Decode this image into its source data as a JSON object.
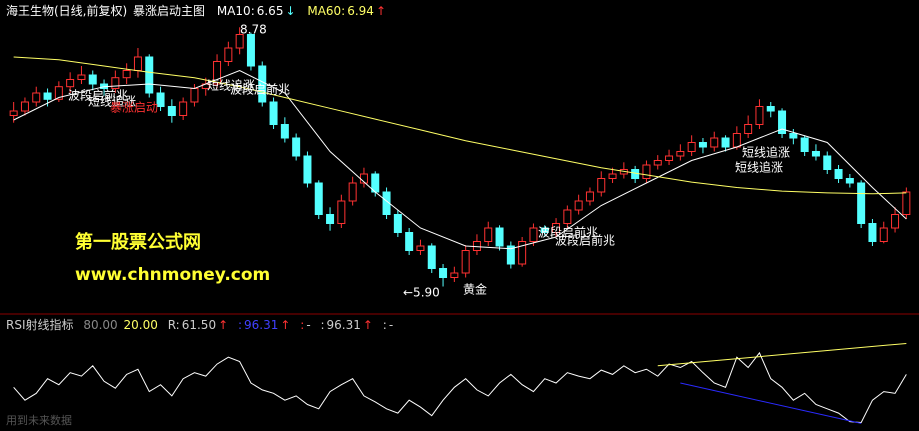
{
  "header": {
    "stock": "海王生物(日线,前复权)",
    "indicator": "暴涨启动主图",
    "ma10": {
      "label": "MA10:",
      "value": "6.65",
      "arrow": "↓"
    },
    "ma60": {
      "label": "MA60:",
      "value": "6.94",
      "arrow": "↑"
    }
  },
  "chart_data": {
    "type": "candlestick",
    "ylim": [
      5.75,
      8.95
    ],
    "up_color": "#ff3232",
    "down_color": "#54ffff",
    "candles": [
      [
        7.8,
        7.95,
        7.72,
        7.85
      ],
      [
        7.85,
        8.0,
        7.8,
        7.95
      ],
      [
        7.95,
        8.12,
        7.9,
        8.05
      ],
      [
        8.05,
        8.1,
        7.9,
        7.98
      ],
      [
        7.98,
        8.18,
        7.95,
        8.12
      ],
      [
        8.12,
        8.28,
        8.05,
        8.2
      ],
      [
        8.2,
        8.35,
        8.15,
        8.25
      ],
      [
        8.25,
        8.3,
        8.08,
        8.15
      ],
      [
        8.15,
        8.2,
        8.02,
        8.1
      ],
      [
        8.1,
        8.3,
        8.05,
        8.22
      ],
      [
        8.22,
        8.38,
        8.15,
        8.3
      ],
      [
        8.3,
        8.55,
        8.22,
        8.45
      ],
      [
        8.45,
        8.48,
        8.0,
        8.05
      ],
      [
        8.05,
        8.12,
        7.85,
        7.9
      ],
      [
        7.9,
        7.98,
        7.72,
        7.8
      ],
      [
        7.8,
        8.0,
        7.75,
        7.95
      ],
      [
        7.95,
        8.15,
        7.9,
        8.1
      ],
      [
        8.1,
        8.22,
        8.02,
        8.15
      ],
      [
        8.15,
        8.48,
        8.1,
        8.4
      ],
      [
        8.4,
        8.62,
        8.35,
        8.55
      ],
      [
        8.55,
        8.78,
        8.48,
        8.7
      ],
      [
        8.7,
        8.72,
        8.3,
        8.35
      ],
      [
        8.35,
        8.4,
        7.9,
        7.95
      ],
      [
        7.95,
        8.0,
        7.65,
        7.7
      ],
      [
        7.7,
        7.78,
        7.5,
        7.55
      ],
      [
        7.55,
        7.6,
        7.3,
        7.35
      ],
      [
        7.35,
        7.4,
        7.0,
        7.05
      ],
      [
        7.05,
        7.08,
        6.65,
        6.7
      ],
      [
        6.7,
        6.78,
        6.52,
        6.6
      ],
      [
        6.6,
        6.92,
        6.55,
        6.85
      ],
      [
        6.85,
        7.12,
        6.8,
        7.05
      ],
      [
        7.05,
        7.22,
        7.0,
        7.15
      ],
      [
        7.15,
        7.18,
        6.9,
        6.95
      ],
      [
        6.95,
        7.0,
        6.65,
        6.7
      ],
      [
        6.7,
        6.75,
        6.45,
        6.5
      ],
      [
        6.5,
        6.55,
        6.25,
        6.3
      ],
      [
        6.3,
        6.42,
        6.25,
        6.35
      ],
      [
        6.35,
        6.38,
        6.05,
        6.1
      ],
      [
        6.1,
        6.15,
        5.9,
        6.0
      ],
      [
        6.0,
        6.12,
        5.95,
        6.05
      ],
      [
        6.05,
        6.36,
        6.0,
        6.3
      ],
      [
        6.3,
        6.48,
        6.25,
        6.4
      ],
      [
        6.4,
        6.62,
        6.35,
        6.55
      ],
      [
        6.55,
        6.58,
        6.3,
        6.35
      ],
      [
        6.35,
        6.4,
        6.1,
        6.15
      ],
      [
        6.15,
        6.45,
        6.12,
        6.4
      ],
      [
        6.4,
        6.6,
        6.35,
        6.55
      ],
      [
        6.55,
        6.58,
        6.45,
        6.5
      ],
      [
        6.5,
        6.66,
        6.45,
        6.6
      ],
      [
        6.6,
        6.8,
        6.55,
        6.75
      ],
      [
        6.75,
        6.92,
        6.7,
        6.85
      ],
      [
        6.85,
        7.0,
        6.8,
        6.95
      ],
      [
        6.95,
        7.18,
        6.9,
        7.1
      ],
      [
        7.1,
        7.22,
        7.05,
        7.15
      ],
      [
        7.15,
        7.28,
        7.1,
        7.2
      ],
      [
        7.2,
        7.24,
        7.05,
        7.1
      ],
      [
        7.1,
        7.3,
        7.05,
        7.25
      ],
      [
        7.25,
        7.36,
        7.2,
        7.3
      ],
      [
        7.3,
        7.42,
        7.25,
        7.35
      ],
      [
        7.35,
        7.48,
        7.3,
        7.4
      ],
      [
        7.4,
        7.58,
        7.35,
        7.5
      ],
      [
        7.5,
        7.55,
        7.38,
        7.45
      ],
      [
        7.45,
        7.62,
        7.4,
        7.55
      ],
      [
        7.55,
        7.58,
        7.4,
        7.45
      ],
      [
        7.45,
        7.68,
        7.42,
        7.6
      ],
      [
        7.6,
        7.8,
        7.55,
        7.7
      ],
      [
        7.7,
        7.98,
        7.65,
        7.9
      ],
      [
        7.9,
        7.95,
        7.78,
        7.85
      ],
      [
        7.85,
        7.88,
        7.55,
        7.6
      ],
      [
        7.6,
        7.65,
        7.48,
        7.55
      ],
      [
        7.55,
        7.58,
        7.35,
        7.4
      ],
      [
        7.4,
        7.48,
        7.3,
        7.35
      ],
      [
        7.35,
        7.4,
        7.15,
        7.2
      ],
      [
        7.2,
        7.25,
        7.05,
        7.1
      ],
      [
        7.1,
        7.15,
        7.0,
        7.05
      ],
      [
        7.05,
        7.08,
        6.55,
        6.6
      ],
      [
        6.6,
        6.65,
        6.35,
        6.4
      ],
      [
        6.4,
        6.62,
        6.38,
        6.55
      ],
      [
        6.55,
        6.78,
        6.5,
        6.7
      ],
      [
        6.7,
        7.0,
        6.65,
        6.95
      ]
    ],
    "ma_x": [
      0,
      4,
      8,
      12,
      16,
      20,
      24,
      28,
      32,
      36,
      40,
      44,
      48,
      52,
      56,
      60,
      64,
      68,
      72,
      76,
      79
    ],
    "ma_series": [
      {
        "name": "MA10",
        "color": "#ffffff",
        "values": [
          7.75,
          8.0,
          8.12,
          8.15,
          8.1,
          8.3,
          8.05,
          7.4,
          6.95,
          6.55,
          6.35,
          6.32,
          6.45,
          6.8,
          7.05,
          7.3,
          7.45,
          7.65,
          7.5,
          7.0,
          6.65
        ]
      },
      {
        "name": "MA60",
        "color": "#ffff66",
        "values": [
          8.45,
          8.42,
          8.35,
          8.28,
          8.22,
          8.12,
          8.0,
          7.88,
          7.76,
          7.64,
          7.52,
          7.42,
          7.32,
          7.22,
          7.14,
          7.06,
          7.0,
          6.96,
          6.94,
          6.93,
          6.94
        ]
      }
    ],
    "annotations": [
      {
        "text": "波段启前兆",
        "color": "#ffffff"
      },
      {
        "text": "短线追涨",
        "color": "#ffffff"
      },
      {
        "text": "暴涨启动",
        "color": "#ff3232"
      },
      {
        "text": "短线追涨",
        "color": "#ffffff"
      },
      {
        "text": "波段启前兆",
        "color": "#ffffff"
      },
      {
        "text": "8.78",
        "color": "#ffffff"
      },
      {
        "text": "←5.90",
        "color": "#ffffff"
      },
      {
        "text": "黄金",
        "color": "#ffffff"
      },
      {
        "text": "波段启前兆",
        "color": "#ffffff"
      },
      {
        "text": "波段启前兆",
        "color": "#ffffff"
      },
      {
        "text": "短线追涨",
        "color": "#ffffff"
      },
      {
        "text": "短线追涨",
        "color": "#ffffff"
      }
    ]
  },
  "watermark": {
    "name": "第一股票公式网",
    "url": "www.chnmoney.com"
  },
  "rsi": {
    "title": "RSI射线指标",
    "level_high": "80.00",
    "level_low": "20.00",
    "r_label": "R:",
    "r_value": "61.50",
    "r_arrow": "↑",
    "b_label": ":",
    "b_value": "96.31",
    "b_arrow": "↑",
    "c_label": ":",
    "c_dash": "-",
    "d_label": ":",
    "d_value": "96.31",
    "d_arrow": "↑",
    "e_label": ":",
    "e_dash": "-",
    "ylim": [
      0,
      100
    ],
    "color": "#ffffff",
    "values": [
      45,
      30,
      38,
      55,
      48,
      62,
      58,
      70,
      52,
      44,
      60,
      66,
      40,
      48,
      35,
      55,
      62,
      58,
      72,
      80,
      75,
      50,
      42,
      38,
      30,
      35,
      25,
      20,
      40,
      48,
      55,
      35,
      28,
      20,
      15,
      30,
      22,
      12,
      30,
      45,
      55,
      42,
      35,
      50,
      60,
      48,
      40,
      55,
      50,
      62,
      58,
      55,
      65,
      60,
      70,
      62,
      66,
      58,
      72,
      68,
      75,
      62,
      50,
      45,
      80,
      68,
      85,
      55,
      45,
      30,
      38,
      25,
      20,
      15,
      5,
      4,
      30,
      40,
      38,
      60
    ],
    "rays": [
      {
        "color": "#ffff66",
        "x": [
          57,
          79
        ],
        "values": [
          70,
          96
        ]
      },
      {
        "color": "#2a2aff",
        "x": [
          59,
          75
        ],
        "values": [
          50,
          3
        ]
      }
    ]
  },
  "footer": "用到未来数据"
}
